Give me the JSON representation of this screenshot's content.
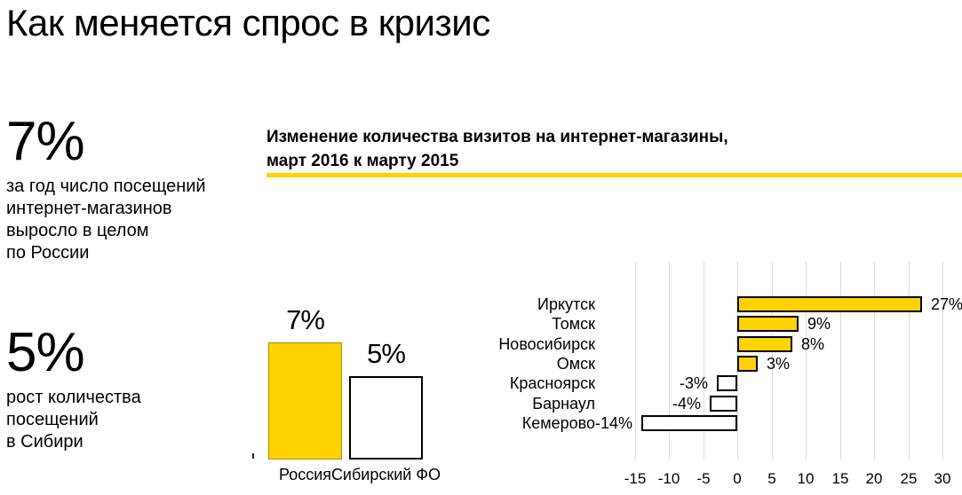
{
  "title": "Как меняется спрос в кризис",
  "colors": {
    "accent": "#ffd200",
    "bar_outline": "#000000",
    "national_bar_outline": "#a98c00",
    "grid": "#dcdcdc",
    "text": "#000000"
  },
  "stats": [
    {
      "value": "7%",
      "description": "за год число посещений\nинтернет-магазинов\nвыросло в целом\nпо России"
    },
    {
      "value": "5%",
      "description": "рост количества\nпосещений\nв Сибири"
    }
  ],
  "chart_header": {
    "line1": "Изменение количества визитов на интернет-магазины,",
    "line2": "март 2016 к марту 2015"
  },
  "chart_data": [
    {
      "type": "bar",
      "title": "Изменение количества визитов на интернет-магазины, март 2016 к марту 2015",
      "categories": [
        "Россия",
        "Сибирский ФО"
      ],
      "values": [
        7,
        5
      ],
      "value_labels": [
        "7%",
        "5%"
      ],
      "bar_fills": [
        "#ffd200",
        "#ffffff"
      ],
      "unit": "%",
      "ylim": [
        0,
        8
      ],
      "grid": false
    },
    {
      "type": "bar",
      "orientation": "horizontal",
      "title": "Изменение количества визитов на интернет-магазины, март 2016 к марту 2015",
      "categories": [
        "Иркутск",
        "Томск",
        "Новосибирск",
        "Омск",
        "Красноярск",
        "Барнаул",
        "Кемерово"
      ],
      "values": [
        27,
        9,
        8,
        3,
        -3,
        -4,
        -14
      ],
      "value_labels": [
        "27%",
        "9%",
        "8%",
        "3%",
        "-3%",
        "-4%",
        "-14%"
      ],
      "x_ticks": [
        -15,
        -10,
        -5,
        0,
        5,
        10,
        15,
        20,
        25,
        30
      ],
      "xlim": [
        -20,
        33
      ],
      "positive_fill": "#ffd200",
      "negative_fill": "#ffffff",
      "unit": "%",
      "grid": true,
      "legend": "none"
    }
  ]
}
